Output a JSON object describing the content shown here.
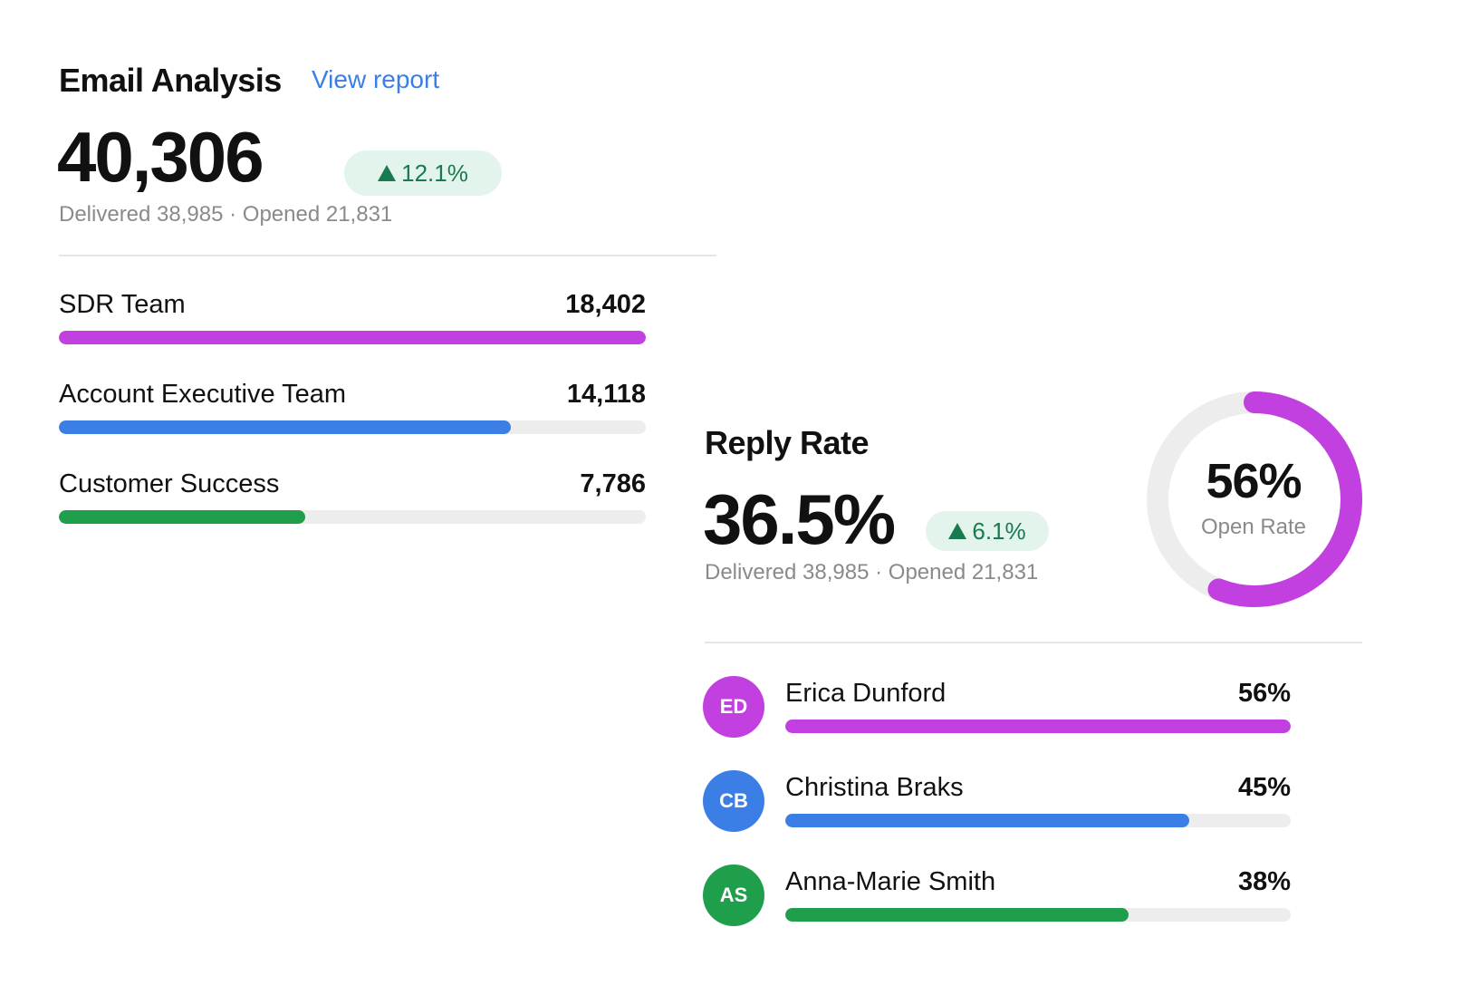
{
  "email_analysis": {
    "title": "Email Analysis",
    "view_report": "View report",
    "total": "40,306",
    "change": "12.1%",
    "subline": "Delivered 38,985 · Opened 21,831",
    "teams": [
      {
        "label": "SDR Team",
        "value": "18,402",
        "fraction": 1.0,
        "color": "#C23FE0"
      },
      {
        "label": "Account Executive Team",
        "value": "14,118",
        "fraction": 0.77,
        "color": "#3B7FE6"
      },
      {
        "label": "Customer Success",
        "value": "7,786",
        "fraction": 0.42,
        "color": "#1F9E4B"
      }
    ]
  },
  "reply_rate": {
    "title": "Reply Rate",
    "value": "36.5%",
    "change": "6.1%",
    "subline": "Delivered 38,985 · Opened 21,831",
    "open_rate": {
      "value": "56%",
      "label": "Open Rate",
      "fraction": 0.56,
      "color": "#C23FE0",
      "track_color": "#EDEDED"
    },
    "people": [
      {
        "initials": "ED",
        "name": "Erica Dunford",
        "value": "56%",
        "fraction": 1.0,
        "color": "#C23FE0"
      },
      {
        "initials": "CB",
        "name": "Christina Braks",
        "value": "45%",
        "fraction": 0.8,
        "color": "#3B7FE6"
      },
      {
        "initials": "AS",
        "name": "Anna-Marie Smith",
        "value": "38%",
        "fraction": 0.68,
        "color": "#1F9E4B"
      }
    ]
  }
}
